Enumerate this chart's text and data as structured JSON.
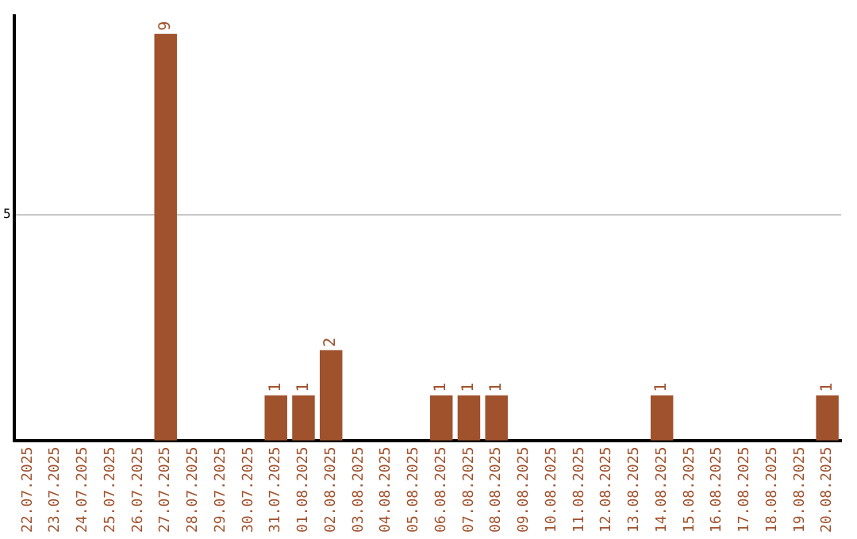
{
  "chart_data": {
    "type": "bar",
    "categories": [
      "22.07.2025",
      "23.07.2025",
      "24.07.2025",
      "25.07.2025",
      "26.07.2025",
      "27.07.2025",
      "28.07.2025",
      "29.07.2025",
      "30.07.2025",
      "31.07.2025",
      "01.08.2025",
      "02.08.2025",
      "03.08.2025",
      "04.08.2025",
      "05.08.2025",
      "06.08.2025",
      "07.08.2025",
      "08.08.2025",
      "09.08.2025",
      "10.08.2025",
      "11.08.2025",
      "12.08.2025",
      "13.08.2025",
      "14.08.2025",
      "15.08.2025",
      "16.08.2025",
      "17.08.2025",
      "18.08.2025",
      "19.08.2025",
      "20.08.2025"
    ],
    "values": [
      0,
      0,
      0,
      0,
      0,
      9,
      0,
      0,
      0,
      1,
      1,
      2,
      0,
      0,
      0,
      1,
      1,
      1,
      0,
      0,
      0,
      0,
      0,
      1,
      0,
      0,
      0,
      0,
      0,
      1
    ],
    "color": "#a0522d",
    "ylim": [
      0,
      9.4
    ],
    "yticks": [
      {
        "value": 0,
        "label": null
      },
      5
    ],
    "value_labels": [
      null,
      null,
      null,
      null,
      null,
      "9",
      null,
      null,
      null,
      "1",
      "1",
      "2",
      null,
      null,
      null,
      "1",
      "1",
      "1",
      null,
      null,
      null,
      null,
      null,
      "1",
      null,
      null,
      null,
      null,
      null,
      "1"
    ],
    "grid": "y",
    "legend": false
  }
}
